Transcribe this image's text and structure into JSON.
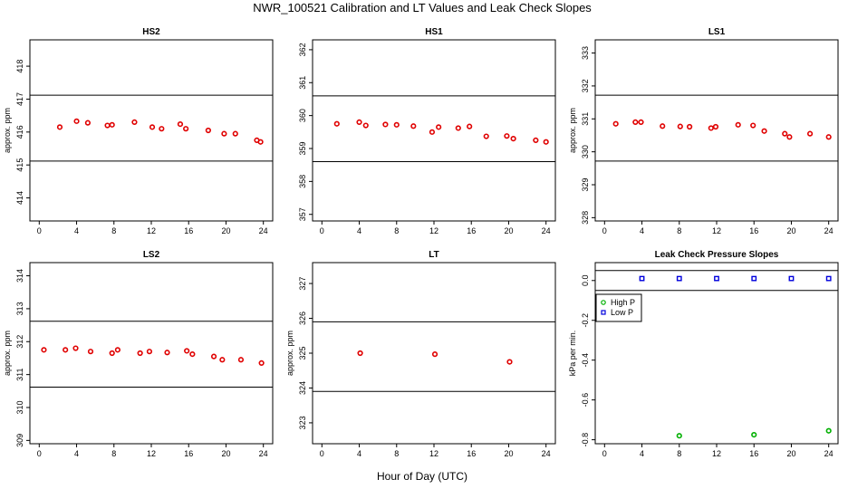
{
  "title": "NWR_100521  Calibration and LT Values and Leak Check Slopes",
  "xlabel": "Hour of Day (UTC)",
  "x_ticks": [
    0,
    4,
    8,
    12,
    16,
    20,
    24
  ],
  "colors": {
    "cal_points": "#e00000",
    "high_p": "#00b000",
    "low_p": "#0000dd",
    "reference_lines": "#000000"
  },
  "chart_data": [
    {
      "type": "scatter",
      "title": "HS2",
      "ylabel": "approx. ppm",
      "xlim": [
        -1,
        25
      ],
      "ylim": [
        413.3,
        418.8
      ],
      "y_ticks": [
        414,
        415,
        416,
        417,
        418
      ],
      "hlines": [
        417.12,
        415.12
      ],
      "series": [
        {
          "x": [
            2.2,
            4.0,
            5.2,
            7.3,
            7.8,
            10.2,
            12.1,
            13.1,
            15.1,
            15.7,
            18.1,
            19.8,
            21.0,
            23.3,
            23.7
          ],
          "y": [
            416.15,
            416.33,
            416.28,
            416.2,
            416.22,
            416.3,
            416.15,
            416.1,
            416.24,
            416.1,
            416.05,
            415.95,
            415.95,
            415.75,
            415.7
          ]
        }
      ]
    },
    {
      "type": "scatter",
      "title": "HS1",
      "ylabel": "",
      "xlim": [
        -1,
        25
      ],
      "ylim": [
        356.8,
        362.3
      ],
      "y_ticks": [
        357,
        358,
        359,
        360,
        361,
        362
      ],
      "hlines": [
        360.6,
        358.6
      ],
      "series": [
        {
          "x": [
            1.6,
            4.0,
            4.7,
            6.8,
            8.0,
            9.8,
            11.8,
            12.5,
            14.6,
            15.8,
            17.6,
            19.8,
            20.5,
            22.9,
            24.0
          ],
          "y": [
            359.75,
            359.8,
            359.7,
            359.73,
            359.72,
            359.68,
            359.5,
            359.65,
            359.62,
            359.67,
            359.37,
            359.38,
            359.3,
            359.25,
            359.2
          ]
        }
      ]
    },
    {
      "type": "scatter",
      "title": "LS1",
      "ylabel": "approx. ppm",
      "xlim": [
        -1,
        25
      ],
      "ylim": [
        327.9,
        333.4
      ],
      "y_ticks": [
        328,
        329,
        330,
        331,
        332,
        333
      ],
      "hlines": [
        331.72,
        329.72
      ],
      "series": [
        {
          "x": [
            1.2,
            3.3,
            3.9,
            6.2,
            8.1,
            9.1,
            11.4,
            11.9,
            14.3,
            15.9,
            17.1,
            19.3,
            19.8,
            22.0,
            24.0
          ],
          "y": [
            330.85,
            330.9,
            330.9,
            330.78,
            330.77,
            330.76,
            330.72,
            330.76,
            330.82,
            330.8,
            330.63,
            330.55,
            330.45,
            330.55,
            330.45
          ]
        }
      ]
    },
    {
      "type": "scatter",
      "title": "LS2",
      "ylabel": "approx. ppm",
      "xlim": [
        -1,
        25
      ],
      "ylim": [
        308.9,
        314.4
      ],
      "y_ticks": [
        309,
        310,
        311,
        312,
        313,
        314
      ],
      "hlines": [
        312.62,
        310.62
      ],
      "series": [
        {
          "x": [
            0.5,
            2.8,
            3.9,
            5.5,
            7.8,
            8.4,
            10.8,
            11.8,
            13.7,
            15.8,
            16.4,
            18.7,
            19.6,
            21.6,
            23.8
          ],
          "y": [
            311.75,
            311.75,
            311.8,
            311.7,
            311.65,
            311.75,
            311.65,
            311.7,
            311.67,
            311.72,
            311.62,
            311.55,
            311.45,
            311.45,
            311.35
          ]
        }
      ]
    },
    {
      "type": "scatter",
      "title": "LT",
      "ylabel": "approx. ppm",
      "xlim": [
        -1,
        25
      ],
      "ylim": [
        322.4,
        327.6
      ],
      "y_ticks": [
        323,
        324,
        325,
        326,
        327
      ],
      "hlines": [
        325.9,
        323.9
      ],
      "series": [
        {
          "x": [
            4.1,
            12.1,
            20.1
          ],
          "y": [
            325.0,
            324.97,
            324.75
          ]
        }
      ]
    },
    {
      "type": "scatter",
      "title": "Leak Check Pressure Slopes",
      "ylabel": "kPa per min.",
      "xlim": [
        -1,
        25
      ],
      "ylim": [
        -0.82,
        0.09
      ],
      "y_ticks": [
        0.0,
        -0.2,
        -0.4,
        -0.6,
        -0.8
      ],
      "y_tick_labels": [
        "0.0",
        "-0.2",
        "-0.4",
        "-0.6",
        "-0.8"
      ],
      "hlines": [
        0.05,
        -0.05
      ],
      "legend": {
        "position": "top-left",
        "entries": [
          "High P",
          "Low P"
        ]
      },
      "series": [
        {
          "name": "High P",
          "x": [
            8,
            16,
            24
          ],
          "y": [
            -0.78,
            -0.775,
            -0.755
          ]
        },
        {
          "name": "Low P",
          "x": [
            4,
            8,
            12,
            16,
            20,
            24
          ],
          "y": [
            0.01,
            0.01,
            0.01,
            0.01,
            0.01,
            0.01
          ]
        }
      ]
    }
  ]
}
